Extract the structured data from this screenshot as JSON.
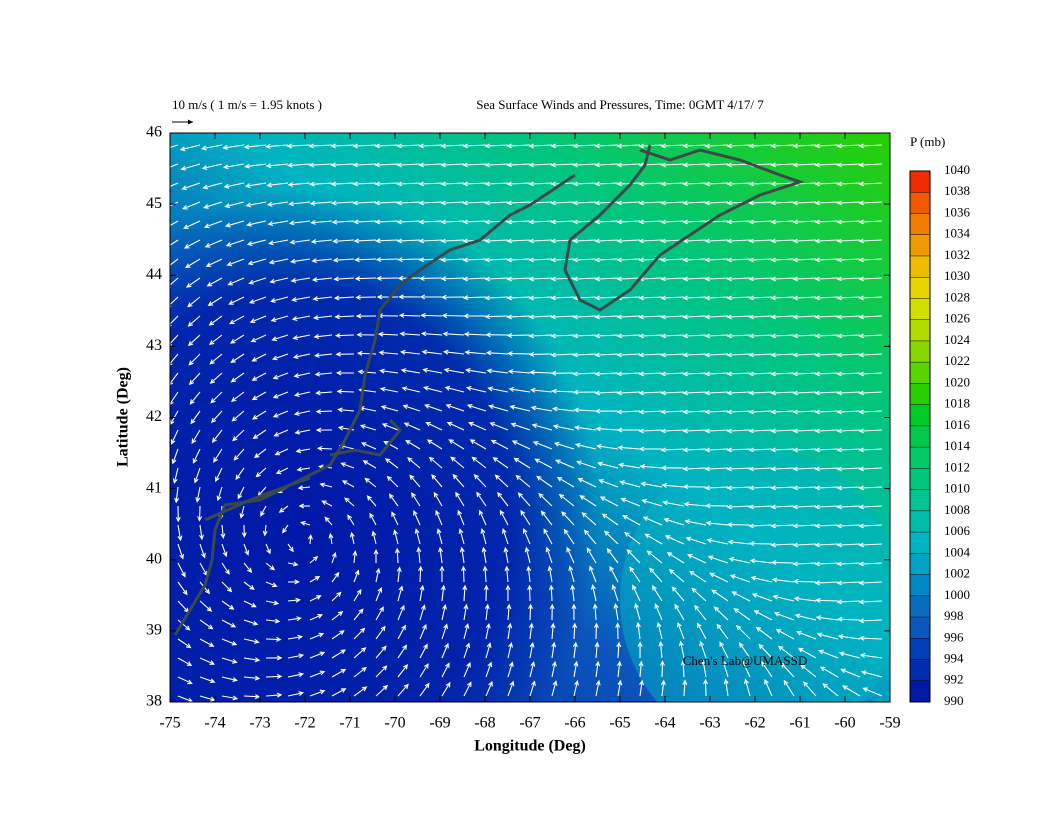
{
  "chart_data": {
    "type": "map",
    "title": "Sea Surface Winds and Pressures, Time: 0GMT 4/17/ 7",
    "scale_label": "10 m/s ( 1 m/s = 1.95 knots )",
    "xlabel": "Longitude (Deg)",
    "ylabel": "Latitude (Deg)",
    "xlim": [
      -75,
      -59
    ],
    "ylim": [
      38,
      46
    ],
    "xticks": [
      -75,
      -74,
      -73,
      -72,
      -71,
      -70,
      -69,
      -68,
      -67,
      -66,
      -65,
      -64,
      -63,
      -62,
      -61,
      -60,
      -59
    ],
    "yticks": [
      38,
      39,
      40,
      41,
      42,
      43,
      44,
      45,
      46
    ],
    "colorbar": {
      "label": "P (mb)",
      "lim": [
        990,
        1040
      ],
      "ticks": [
        990,
        992,
        994,
        996,
        998,
        1000,
        1002,
        1004,
        1006,
        1008,
        1010,
        1012,
        1014,
        1016,
        1018,
        1020,
        1022,
        1024,
        1026,
        1028,
        1030,
        1032,
        1034,
        1036,
        1038,
        1040
      ],
      "colors": [
        "#0018a8",
        "#002cb0",
        "#0040b6",
        "#0a56bc",
        "#0a6cc0",
        "#0088c6",
        "#00a2c8",
        "#00b4c2",
        "#00bcaa",
        "#00c494",
        "#00c67c",
        "#00c864",
        "#00c848",
        "#00cc28",
        "#28d000",
        "#58d400",
        "#88d800",
        "#b0dc00",
        "#d0e000",
        "#e8d400",
        "#f0bc00",
        "#f09c00",
        "#f07c00",
        "#f05800",
        "#f02c00"
      ]
    },
    "credit": "Chen's Lab@UMASSD"
  }
}
